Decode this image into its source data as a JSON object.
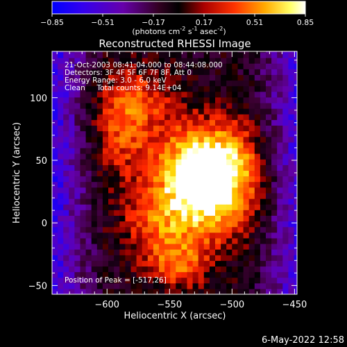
{
  "colorbar": {
    "ticks": [
      "-0.85",
      "-0.51",
      "-0.17",
      "0.17",
      "0.51",
      "0.85"
    ],
    "range": [
      -0.85,
      0.85
    ],
    "unit_main": "(photons cm",
    "unit_sup1": "-2",
    "unit_mid": " s",
    "unit_sup2": "-1",
    "unit_end": " asec",
    "unit_sup3": "-2",
    "unit_close": ")"
  },
  "chart_data": {
    "type": "heatmap",
    "title": "Reconstructed RHESSI Image",
    "xlabel": "Heliocentric X (arcsec)",
    "ylabel": "Heliocentric Y (arcsec)",
    "xlim": [
      -644,
      -448
    ],
    "ylim": [
      -57,
      137
    ],
    "x_ticks": [
      -600,
      -550,
      -500,
      -450
    ],
    "x_tick_labels": [
      "−600",
      "−550",
      "−500",
      "−450"
    ],
    "y_ticks": [
      -50,
      0,
      50,
      100
    ],
    "y_tick_labels": [
      "−50",
      "0",
      "50",
      "100"
    ],
    "peak": [
      -517,
      26
    ],
    "peak_value": 0.85,
    "colormap": [
      "#0000ff",
      "#6a00aa",
      "#2a0020",
      "#000000",
      "#aa0000",
      "#ff4400",
      "#ffaa00",
      "#ffff88",
      "#ffffff"
    ],
    "annotations": [
      "21-Oct-2003 08:41:04.000 to 08:44:08.000",
      "Detectors: 3F 4F 5F 6F 7F 8F, Att 0",
      "Energy Range: 3.0 - 6.0 keV",
      "Clean     Total counts: 9.14E+04"
    ],
    "peak_label": "Position of Peak = [-517,26]"
  },
  "footer": {
    "date": "6-May-2022 12:58"
  }
}
